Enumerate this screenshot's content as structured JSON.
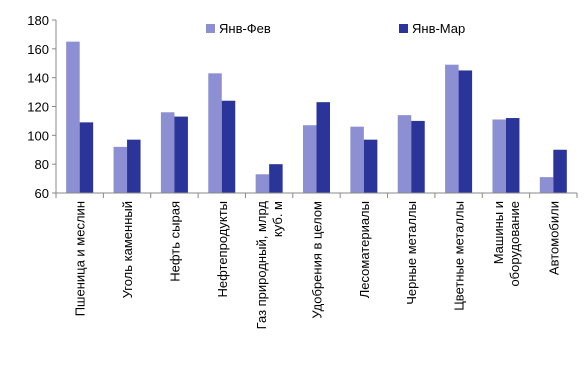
{
  "chart_data": {
    "type": "bar",
    "categories": [
      [
        "Пшеница и меслин"
      ],
      [
        "Уголь каменный"
      ],
      [
        "Нефть сырая"
      ],
      [
        "Нефтепродукты"
      ],
      [
        "Газ природный, млрд",
        "куб. м"
      ],
      [
        "Удобрения в целом"
      ],
      [
        "Лесоматериалы"
      ],
      [
        "Черные металлы"
      ],
      [
        "Цветные металлы"
      ],
      [
        "Машины и",
        "оборудование"
      ],
      [
        "Автомобили"
      ]
    ],
    "series": [
      {
        "name": "Янв-Фев",
        "color": "#8c8fd1",
        "values": [
          165,
          92,
          116,
          143,
          73,
          107,
          106,
          114,
          149,
          111,
          71
        ]
      },
      {
        "name": "Янв-Мар",
        "color": "#2b3599",
        "values": [
          109,
          97,
          113,
          124,
          80,
          123,
          97,
          110,
          145,
          112,
          90
        ]
      }
    ],
    "ylim": [
      60,
      180
    ],
    "yticks": [
      "60",
      "80",
      "100",
      "120",
      "140",
      "160",
      "180"
    ],
    "grid": false,
    "legend": "top"
  }
}
